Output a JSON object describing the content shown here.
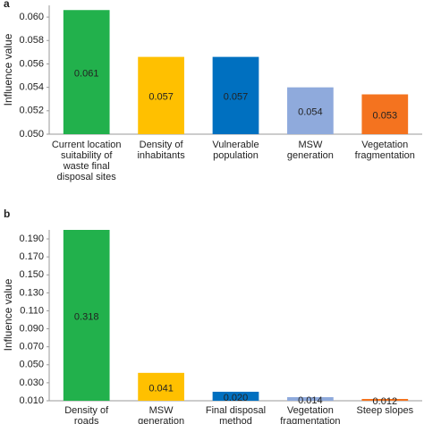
{
  "chart_data": [
    {
      "type": "bar",
      "panel": "a",
      "ylabel": "Influence value",
      "categories": [
        [
          "Current location",
          "suitability of",
          "waste final",
          "disposal sites"
        ],
        [
          "Density of",
          "inhabitants"
        ],
        [
          "Vulnerable",
          "population"
        ],
        [
          "MSW",
          "generation"
        ],
        [
          "Vegetation",
          "fragmentation"
        ]
      ],
      "values": [
        0.0606,
        0.0566,
        0.0566,
        0.054,
        0.0534
      ],
      "value_labels": [
        "0.061",
        "0.057",
        "0.057",
        "0.054",
        "0.053"
      ],
      "colors": [
        "#22b14c",
        "#ffc000",
        "#0070c0",
        "#8faadc",
        "#f4731f"
      ],
      "ylim": [
        0.05,
        0.061
      ],
      "yticks": [
        {
          "value": 0.05,
          "label": "0.050"
        },
        {
          "value": 0.052,
          "label": "0.052"
        },
        {
          "value": 0.054,
          "label": "0.054"
        },
        {
          "value": 0.056,
          "label": "0.056"
        },
        {
          "value": 0.058,
          "label": "0.058"
        },
        {
          "value": 0.06,
          "label": "0.060"
        }
      ]
    },
    {
      "type": "bar",
      "panel": "b",
      "ylabel": "Influence value",
      "categories": [
        [
          "Density of",
          "roads"
        ],
        [
          "MSW",
          "generation"
        ],
        [
          "Final disposal",
          "method"
        ],
        [
          "Vegetation",
          "fragmentation"
        ],
        [
          "Steep slopes"
        ]
      ],
      "values": [
        0.318,
        0.041,
        0.02,
        0.014,
        0.012
      ],
      "value_labels": [
        "0.318",
        "0.041",
        "0.020",
        "0.014",
        "0.012"
      ],
      "colors": [
        "#22b14c",
        "#ffc000",
        "#0070c0",
        "#8faadc",
        "#f4731f"
      ],
      "ylim": [
        0.01,
        0.2
      ],
      "yticks": [
        {
          "value": 0.01,
          "label": "0.010"
        },
        {
          "value": 0.03,
          "label": "0.030"
        },
        {
          "value": 0.05,
          "label": "0.050"
        },
        {
          "value": 0.07,
          "label": "0.070"
        },
        {
          "value": 0.09,
          "label": "0.090"
        },
        {
          "value": 0.11,
          "label": "0.110"
        },
        {
          "value": 0.13,
          "label": "0.130"
        },
        {
          "value": 0.15,
          "label": "0.150"
        },
        {
          "value": 0.17,
          "label": "0.170"
        },
        {
          "value": 0.19,
          "label": "0.190"
        }
      ]
    }
  ]
}
